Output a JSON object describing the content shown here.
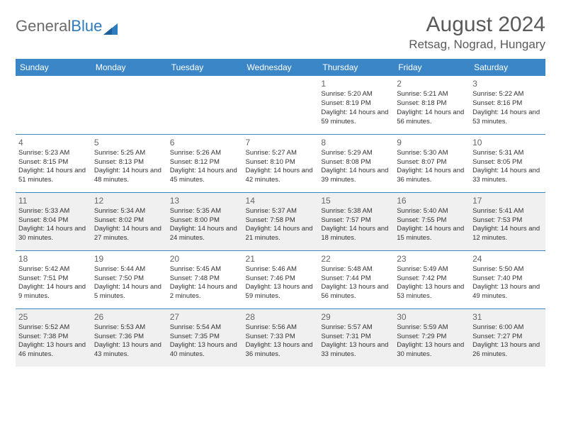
{
  "logo": {
    "text_gray": "General",
    "text_blue": "Blue"
  },
  "title": "August 2024",
  "location": "Retsag, Nograd, Hungary",
  "weekday_headers": [
    "Sunday",
    "Monday",
    "Tuesday",
    "Wednesday",
    "Thursday",
    "Friday",
    "Saturday"
  ],
  "colors": {
    "header_bg": "#3b86c6",
    "header_fg": "#ffffff",
    "alt_row_bg": "#f0f0f0",
    "border": "#3b86c6",
    "text": "#333333",
    "logo_gray": "#6b6b6b",
    "logo_blue": "#2e7cc0"
  },
  "weeks": [
    [
      null,
      null,
      null,
      null,
      {
        "day": "1",
        "sunrise": "5:20 AM",
        "sunset": "8:19 PM",
        "daylight": "14 hours and 59 minutes."
      },
      {
        "day": "2",
        "sunrise": "5:21 AM",
        "sunset": "8:18 PM",
        "daylight": "14 hours and 56 minutes."
      },
      {
        "day": "3",
        "sunrise": "5:22 AM",
        "sunset": "8:16 PM",
        "daylight": "14 hours and 53 minutes."
      }
    ],
    [
      {
        "day": "4",
        "sunrise": "5:23 AM",
        "sunset": "8:15 PM",
        "daylight": "14 hours and 51 minutes."
      },
      {
        "day": "5",
        "sunrise": "5:25 AM",
        "sunset": "8:13 PM",
        "daylight": "14 hours and 48 minutes."
      },
      {
        "day": "6",
        "sunrise": "5:26 AM",
        "sunset": "8:12 PM",
        "daylight": "14 hours and 45 minutes."
      },
      {
        "day": "7",
        "sunrise": "5:27 AM",
        "sunset": "8:10 PM",
        "daylight": "14 hours and 42 minutes."
      },
      {
        "day": "8",
        "sunrise": "5:29 AM",
        "sunset": "8:08 PM",
        "daylight": "14 hours and 39 minutes."
      },
      {
        "day": "9",
        "sunrise": "5:30 AM",
        "sunset": "8:07 PM",
        "daylight": "14 hours and 36 minutes."
      },
      {
        "day": "10",
        "sunrise": "5:31 AM",
        "sunset": "8:05 PM",
        "daylight": "14 hours and 33 minutes."
      }
    ],
    [
      {
        "day": "11",
        "sunrise": "5:33 AM",
        "sunset": "8:04 PM",
        "daylight": "14 hours and 30 minutes."
      },
      {
        "day": "12",
        "sunrise": "5:34 AM",
        "sunset": "8:02 PM",
        "daylight": "14 hours and 27 minutes."
      },
      {
        "day": "13",
        "sunrise": "5:35 AM",
        "sunset": "8:00 PM",
        "daylight": "14 hours and 24 minutes."
      },
      {
        "day": "14",
        "sunrise": "5:37 AM",
        "sunset": "7:58 PM",
        "daylight": "14 hours and 21 minutes."
      },
      {
        "day": "15",
        "sunrise": "5:38 AM",
        "sunset": "7:57 PM",
        "daylight": "14 hours and 18 minutes."
      },
      {
        "day": "16",
        "sunrise": "5:40 AM",
        "sunset": "7:55 PM",
        "daylight": "14 hours and 15 minutes."
      },
      {
        "day": "17",
        "sunrise": "5:41 AM",
        "sunset": "7:53 PM",
        "daylight": "14 hours and 12 minutes."
      }
    ],
    [
      {
        "day": "18",
        "sunrise": "5:42 AM",
        "sunset": "7:51 PM",
        "daylight": "14 hours and 9 minutes."
      },
      {
        "day": "19",
        "sunrise": "5:44 AM",
        "sunset": "7:50 PM",
        "daylight": "14 hours and 5 minutes."
      },
      {
        "day": "20",
        "sunrise": "5:45 AM",
        "sunset": "7:48 PM",
        "daylight": "14 hours and 2 minutes."
      },
      {
        "day": "21",
        "sunrise": "5:46 AM",
        "sunset": "7:46 PM",
        "daylight": "13 hours and 59 minutes."
      },
      {
        "day": "22",
        "sunrise": "5:48 AM",
        "sunset": "7:44 PM",
        "daylight": "13 hours and 56 minutes."
      },
      {
        "day": "23",
        "sunrise": "5:49 AM",
        "sunset": "7:42 PM",
        "daylight": "13 hours and 53 minutes."
      },
      {
        "day": "24",
        "sunrise": "5:50 AM",
        "sunset": "7:40 PM",
        "daylight": "13 hours and 49 minutes."
      }
    ],
    [
      {
        "day": "25",
        "sunrise": "5:52 AM",
        "sunset": "7:38 PM",
        "daylight": "13 hours and 46 minutes."
      },
      {
        "day": "26",
        "sunrise": "5:53 AM",
        "sunset": "7:36 PM",
        "daylight": "13 hours and 43 minutes."
      },
      {
        "day": "27",
        "sunrise": "5:54 AM",
        "sunset": "7:35 PM",
        "daylight": "13 hours and 40 minutes."
      },
      {
        "day": "28",
        "sunrise": "5:56 AM",
        "sunset": "7:33 PM",
        "daylight": "13 hours and 36 minutes."
      },
      {
        "day": "29",
        "sunrise": "5:57 AM",
        "sunset": "7:31 PM",
        "daylight": "13 hours and 33 minutes."
      },
      {
        "day": "30",
        "sunrise": "5:59 AM",
        "sunset": "7:29 PM",
        "daylight": "13 hours and 30 minutes."
      },
      {
        "day": "31",
        "sunrise": "6:00 AM",
        "sunset": "7:27 PM",
        "daylight": "13 hours and 26 minutes."
      }
    ]
  ],
  "labels": {
    "sunrise": "Sunrise: ",
    "sunset": "Sunset: ",
    "daylight": "Daylight: "
  }
}
